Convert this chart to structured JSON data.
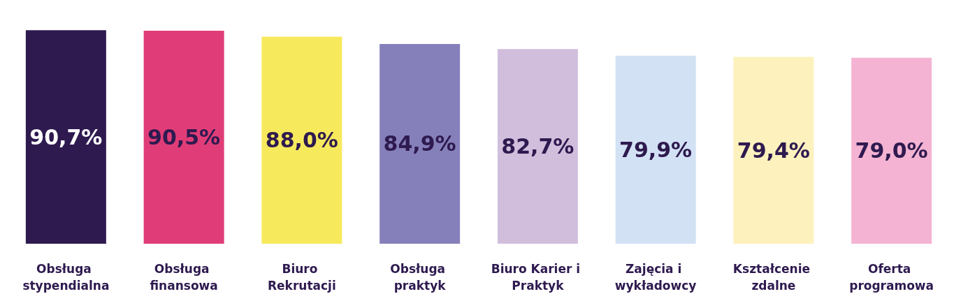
{
  "chart_data": {
    "type": "bar",
    "categories": [
      "Obsługa stypendialna",
      "Obsługa finansowa",
      "Biuro Rekrutacji",
      "Obsługa praktyk",
      "Biuro Karier i Praktyk",
      "Zajęcia i wykładowcy",
      "Kształcenie zdalne",
      "Oferta programowa"
    ],
    "values": [
      90.7,
      90.5,
      88.0,
      84.9,
      82.7,
      79.9,
      79.4,
      79.0
    ],
    "value_labels": [
      "90,7%",
      "90,5%",
      "88,0%",
      "84,9%",
      "82,7%",
      "79,9%",
      "79,4%",
      "79,0%"
    ],
    "colors": [
      "#2e1a4f",
      "#e03d78",
      "#f7e95c",
      "#8680ba",
      "#d1bedc",
      "#d3e1f4",
      "#fdf1bd",
      "#f4b3d3"
    ]
  }
}
